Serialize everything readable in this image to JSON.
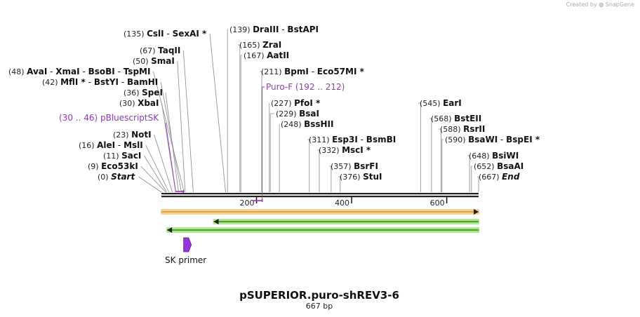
{
  "credit": {
    "prefix": "Created by",
    "brand": "SnapGene"
  },
  "plasmid": {
    "name": "pSUPERIOR.puro-shREV3-6",
    "length_label": "667 bp",
    "length_bp": 667
  },
  "ticks": [
    {
      "bp": 200,
      "label": "200"
    },
    {
      "bp": 400,
      "label": "400"
    },
    {
      "bp": 600,
      "label": "600"
    }
  ],
  "sites": [
    {
      "pos": "(135)",
      "names": [
        "CslI",
        "SexAI *"
      ],
      "bp": 135
    },
    {
      "pos": "(139)",
      "names": [
        "DraIII",
        "BstAPI"
      ],
      "bp": 139
    },
    {
      "pos": "(67)",
      "names": [
        "TaqII"
      ],
      "bp": 67
    },
    {
      "pos": "(165)",
      "names": [
        "ZraI"
      ],
      "bp": 165
    },
    {
      "pos": "(50)",
      "names": [
        "SmaI"
      ],
      "bp": 50
    },
    {
      "pos": "(167)",
      "names": [
        "AatII"
      ],
      "bp": 167
    },
    {
      "pos": "(48)",
      "names": [
        "AvaI",
        "XmaI",
        "BsoBI",
        "TspMI"
      ],
      "bp": 48
    },
    {
      "pos": "(211)",
      "names": [
        "BpmI",
        "Eco57MI *"
      ],
      "bp": 211
    },
    {
      "pos": "(42)",
      "names": [
        "MflI *",
        "BstYI",
        "BamHI"
      ],
      "bp": 42
    },
    {
      "pos": "(36)",
      "names": [
        "SpeI"
      ],
      "bp": 36
    },
    {
      "pos": "(30)",
      "names": [
        "XbaI"
      ],
      "bp": 30
    },
    {
      "pos": "(227)",
      "names": [
        "PfoI *"
      ],
      "bp": 227
    },
    {
      "pos": "(545)",
      "names": [
        "EarI"
      ],
      "bp": 545
    },
    {
      "pos": "(229)",
      "names": [
        "BsaI"
      ],
      "bp": 229
    },
    {
      "pos": "(248)",
      "names": [
        "BssHII"
      ],
      "bp": 248
    },
    {
      "pos": "(568)",
      "names": [
        "BstEII"
      ],
      "bp": 568
    },
    {
      "pos": "(23)",
      "names": [
        "NotI"
      ],
      "bp": 23
    },
    {
      "pos": "(588)",
      "names": [
        "RsrII"
      ],
      "bp": 588
    },
    {
      "pos": "(311)",
      "names": [
        "Esp3I",
        "BsmBI"
      ],
      "bp": 311
    },
    {
      "pos": "(16)",
      "names": [
        "AleI",
        "MslI"
      ],
      "bp": 16
    },
    {
      "pos": "(590)",
      "names": [
        "BsaWI",
        "BspEI *"
      ],
      "bp": 590
    },
    {
      "pos": "(332)",
      "names": [
        "MscI *"
      ],
      "bp": 332
    },
    {
      "pos": "(11)",
      "names": [
        "SacI"
      ],
      "bp": 11
    },
    {
      "pos": "(648)",
      "names": [
        "BsiWI"
      ],
      "bp": 648
    },
    {
      "pos": "(9)",
      "names": [
        "Eco53kI"
      ],
      "bp": 9
    },
    {
      "pos": "(357)",
      "names": [
        "BsrFI"
      ],
      "bp": 357
    },
    {
      "pos": "(652)",
      "names": [
        "BsaAI"
      ],
      "bp": 652
    },
    {
      "pos": "(0)",
      "names": [
        "Start"
      ],
      "bp": 0
    },
    {
      "pos": "(376)",
      "names": [
        "StuI"
      ],
      "bp": 376
    },
    {
      "pos": "(667)",
      "names": [
        "End"
      ],
      "bp": 667
    }
  ],
  "primers": [
    {
      "name": "Puro-F",
      "range": "(192 .. 212)",
      "start": 192,
      "end": 212
    },
    {
      "name": "pBluescriptSK",
      "range": "(30 .. 46)",
      "start": 30,
      "end": 46
    }
  ],
  "features": [
    {
      "name": "SK primer",
      "direction": "forward",
      "start": 29,
      "end": 45,
      "color": "#9933dd"
    }
  ],
  "tracks": [
    {
      "direction": "forward",
      "start": 0,
      "end": 667,
      "color": "#e8a33c",
      "outline": "#f2d49a"
    },
    {
      "direction": "reverse",
      "start": 110,
      "end": 667,
      "color": "#44aa22",
      "outline": "#b5e59a"
    },
    {
      "direction": "reverse",
      "start": 12,
      "end": 667,
      "color": "#44aa22",
      "outline": "#b5e59a"
    }
  ],
  "colors": {
    "backbone": "#222222",
    "primer": "#9933cc",
    "leader": "#888888"
  }
}
